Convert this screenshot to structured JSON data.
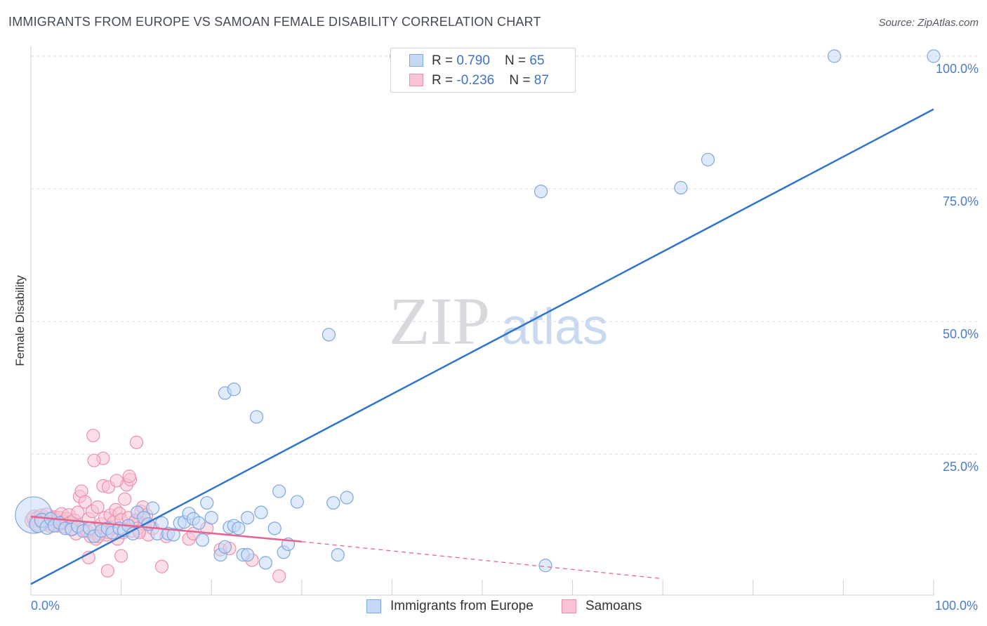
{
  "title": "IMMIGRANTS FROM EUROPE VS SAMOAN FEMALE DISABILITY CORRELATION CHART",
  "source": "Source: ZipAtlas.com",
  "watermark": {
    "zip": "ZIP",
    "atlas": "atlas"
  },
  "colors": {
    "blue_fill": "#c5d8f5",
    "blue_stroke": "#7ea6e0",
    "blue_line": "#2f74d0",
    "pink_fill": "#f8c4d4",
    "pink_stroke": "#ee8fae",
    "pink_line": "#e8628f",
    "tick_text": "#4a7cc7",
    "grid": "#dddddd"
  },
  "legend": {
    "rows": [
      {
        "r_label": "R = ",
        "r_value": " 0.790",
        "n_label": "N = ",
        "n_value": "65"
      },
      {
        "r_label": "R = ",
        "r_value": "-0.236",
        "n_label": "N = ",
        "n_value": "87"
      }
    ]
  },
  "bottom_legend": {
    "items": [
      {
        "label": "Immigrants from Europe"
      },
      {
        "label": "Samoans"
      }
    ]
  },
  "chart_data": {
    "type": "scatter",
    "title": "IMMIGRANTS FROM EUROPE VS SAMOAN FEMALE DISABILITY CORRELATION CHART",
    "xlabel": "",
    "ylabel": "Female Disability",
    "xlim": [
      0,
      100
    ],
    "ylim": [
      0,
      100
    ],
    "x_tick_labels": [
      {
        "value": 0,
        "label": "0.0%"
      },
      {
        "value": 100,
        "label": "100.0%"
      }
    ],
    "y_tick_labels": [
      {
        "value": 25,
        "label": "25.0%"
      },
      {
        "value": 50,
        "label": "50.0%"
      },
      {
        "value": 75,
        "label": "75.0%"
      },
      {
        "value": 100,
        "label": "100.0%"
      }
    ],
    "grid": true,
    "series": [
      {
        "name": "Immigrants from Europe",
        "color": "blue",
        "r": 0.79,
        "n": 65,
        "trend": {
          "x0": 0,
          "y0": 0.5,
          "x1": 100,
          "y1": 90,
          "style": "solid"
        },
        "points": [
          [
            0.3,
            13.5,
            26
          ],
          [
            0.8,
            11.8,
            12
          ],
          [
            1.2,
            12.5,
            10
          ],
          [
            1.8,
            11.2,
            10
          ],
          [
            2.2,
            12.8,
            9
          ],
          [
            2.6,
            11.5,
            9
          ],
          [
            3.2,
            12.0,
            9
          ],
          [
            3.8,
            11.0,
            9
          ],
          [
            4.5,
            10.8,
            9
          ],
          [
            5.2,
            11.4,
            9
          ],
          [
            5.8,
            10.5,
            9
          ],
          [
            6.5,
            11.0,
            9
          ],
          [
            7.0,
            9.5,
            9
          ],
          [
            7.8,
            10.5,
            9
          ],
          [
            8.5,
            11.0,
            9
          ],
          [
            9.0,
            10.2,
            9
          ],
          [
            9.8,
            11.0,
            9
          ],
          [
            10.3,
            10.6,
            9
          ],
          [
            10.8,
            11.5,
            9
          ],
          [
            11.3,
            10.0,
            9
          ],
          [
            11.8,
            14.0,
            9
          ],
          [
            12.5,
            13.0,
            9
          ],
          [
            13.0,
            11.8,
            9
          ],
          [
            13.5,
            14.8,
            9
          ],
          [
            14.0,
            10.0,
            9
          ],
          [
            14.5,
            12.0,
            9
          ],
          [
            15.2,
            10.0,
            9
          ],
          [
            15.8,
            9.8,
            9
          ],
          [
            16.5,
            12.0,
            9
          ],
          [
            17.0,
            12.2,
            9
          ],
          [
            17.5,
            13.8,
            9
          ],
          [
            18.0,
            12.8,
            9
          ],
          [
            18.6,
            12.0,
            9
          ],
          [
            19.0,
            8.8,
            9
          ],
          [
            19.5,
            15.8,
            9
          ],
          [
            20.0,
            13.0,
            9
          ],
          [
            21.0,
            6.0,
            9
          ],
          [
            21.5,
            7.5,
            9
          ],
          [
            22.0,
            11.2,
            9
          ],
          [
            22.5,
            11.5,
            9
          ],
          [
            23.0,
            11.0,
            9
          ],
          [
            23.5,
            6.0,
            9
          ],
          [
            24.0,
            13.0,
            9
          ],
          [
            25.0,
            32.0,
            9
          ],
          [
            25.5,
            14.0,
            9
          ],
          [
            26.0,
            4.5,
            9
          ],
          [
            27.0,
            11.0,
            9
          ],
          [
            27.5,
            18.0,
            9
          ],
          [
            28.0,
            6.5,
            9
          ],
          [
            28.5,
            8.0,
            9
          ],
          [
            29.5,
            16.0,
            9
          ],
          [
            33.0,
            47.5,
            9
          ],
          [
            33.5,
            15.8,
            9
          ],
          [
            34.0,
            6.0,
            9
          ],
          [
            35.0,
            16.8,
            9
          ],
          [
            21.5,
            36.5,
            9
          ],
          [
            22.5,
            37.2,
            9
          ],
          [
            40.5,
            100.0,
            9
          ],
          [
            57.0,
            4.0,
            9
          ],
          [
            56.5,
            74.5,
            9
          ],
          [
            72.0,
            75.2,
            9
          ],
          [
            75.0,
            80.5,
            9
          ],
          [
            89.0,
            100.0,
            9
          ],
          [
            100.0,
            100.0,
            9
          ],
          [
            24.0,
            6.0,
            9
          ]
        ]
      },
      {
        "name": "Samoans",
        "color": "pink",
        "r": -0.236,
        "n": 87,
        "trend": {
          "x0": 0,
          "y0": 13.2,
          "x1": 30,
          "y1": 8.5,
          "style": "solid",
          "ext_x1": 70,
          "ext_y1": 1.5,
          "ext_style": "dashed"
        },
        "points": [
          [
            0.2,
            12.5,
            11
          ],
          [
            0.4,
            13.0,
            11
          ],
          [
            0.6,
            12.0,
            11
          ],
          [
            0.8,
            12.8,
            11
          ],
          [
            1.0,
            11.8,
            11
          ],
          [
            1.2,
            13.2,
            11
          ],
          [
            1.4,
            12.2,
            11
          ],
          [
            1.6,
            12.6,
            11
          ],
          [
            1.8,
            13.5,
            10
          ],
          [
            2.0,
            12.0,
            10
          ],
          [
            2.2,
            11.5,
            10
          ],
          [
            2.4,
            12.8,
            10
          ],
          [
            2.6,
            13.0,
            10
          ],
          [
            2.8,
            12.3,
            10
          ],
          [
            3.0,
            11.6,
            10
          ],
          [
            3.2,
            12.9,
            10
          ],
          [
            3.4,
            13.6,
            10
          ],
          [
            3.6,
            12.1,
            10
          ],
          [
            3.8,
            11.4,
            10
          ],
          [
            4.0,
            12.7,
            10
          ],
          [
            4.2,
            13.4,
            10
          ],
          [
            4.4,
            12.0,
            10
          ],
          [
            4.6,
            11.0,
            10
          ],
          [
            4.8,
            12.4,
            10
          ],
          [
            5.0,
            10.0,
            9
          ],
          [
            5.2,
            14.0,
            9
          ],
          [
            5.4,
            17.0,
            9
          ],
          [
            5.6,
            18.0,
            9
          ],
          [
            5.8,
            11.0,
            9
          ],
          [
            6.0,
            16.0,
            9
          ],
          [
            6.2,
            10.5,
            9
          ],
          [
            6.4,
            12.8,
            9
          ],
          [
            6.6,
            9.5,
            9
          ],
          [
            6.8,
            14.2,
            9
          ],
          [
            7.0,
            10.8,
            9
          ],
          [
            7.2,
            9.0,
            9
          ],
          [
            7.4,
            15.0,
            9
          ],
          [
            7.6,
            10.0,
            9
          ],
          [
            7.8,
            11.8,
            9
          ],
          [
            8.0,
            19.0,
            9
          ],
          [
            8.2,
            13.0,
            9
          ],
          [
            8.4,
            9.8,
            9
          ],
          [
            8.6,
            18.8,
            9
          ],
          [
            8.8,
            13.5,
            9
          ],
          [
            9.0,
            11.0,
            9
          ],
          [
            9.2,
            12.2,
            9
          ],
          [
            9.4,
            14.5,
            9
          ],
          [
            9.6,
            9.0,
            9
          ],
          [
            9.8,
            13.8,
            9
          ],
          [
            10.0,
            12.6,
            9
          ],
          [
            10.2,
            10.2,
            9
          ],
          [
            10.4,
            16.5,
            9
          ],
          [
            10.6,
            19.2,
            9
          ],
          [
            10.8,
            13.0,
            9
          ],
          [
            11.0,
            20.2,
            9
          ],
          [
            11.2,
            10.5,
            9
          ],
          [
            11.4,
            12.0,
            9
          ],
          [
            11.6,
            12.5,
            9
          ],
          [
            11.8,
            11.0,
            9
          ],
          [
            12.0,
            10.5,
            9
          ],
          [
            12.2,
            14.2,
            9
          ],
          [
            12.4,
            15.0,
            9
          ],
          [
            12.6,
            11.8,
            9
          ],
          [
            12.8,
            13.5,
            9
          ],
          [
            13.0,
            9.8,
            9
          ],
          [
            6.9,
            28.5,
            9
          ],
          [
            11.7,
            27.2,
            9
          ],
          [
            8.0,
            24.2,
            9
          ],
          [
            7.0,
            23.8,
            9
          ],
          [
            10.9,
            20.8,
            9
          ],
          [
            9.5,
            20.0,
            9
          ],
          [
            7.5,
            9.5,
            9
          ],
          [
            6.4,
            5.5,
            9
          ],
          [
            8.5,
            10.3,
            9
          ],
          [
            10.0,
            5.8,
            9
          ],
          [
            12.0,
            10.2,
            9
          ],
          [
            14.5,
            3.8,
            9
          ],
          [
            17.5,
            9.0,
            9
          ],
          [
            18.0,
            10.0,
            9
          ],
          [
            19.5,
            11.0,
            9
          ],
          [
            21.0,
            7.0,
            9
          ],
          [
            22.0,
            7.2,
            9
          ],
          [
            24.5,
            5.0,
            9
          ],
          [
            27.5,
            2.0,
            9
          ],
          [
            8.5,
            3.0,
            9
          ],
          [
            13.5,
            11.0,
            9
          ],
          [
            15.0,
            9.5,
            9
          ]
        ]
      }
    ]
  }
}
